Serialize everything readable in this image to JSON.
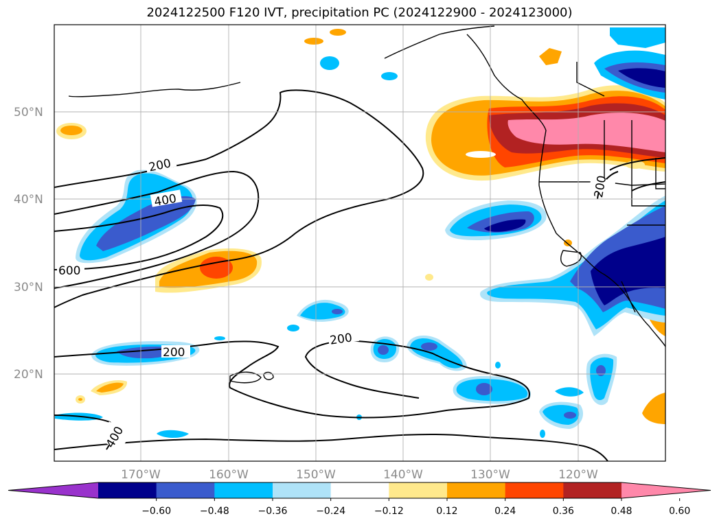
{
  "title": "2024122500 F120 IVT, precipitation PC (2024122900 - 2024123000)",
  "lon_labels": [
    "170°W",
    "160°W",
    "150°W",
    "140°W",
    "130°W",
    "120°W"
  ],
  "lat_labels": [
    "50°N",
    "40°N",
    "30°N",
    "20°N"
  ],
  "contour_labels": [
    "200",
    "400",
    "600",
    "200",
    "200",
    "400",
    "200"
  ],
  "colorbar": {
    "ticks": [
      "−0.60",
      "−0.48",
      "−0.36",
      "−0.24",
      "−0.12",
      "0.12",
      "0.24",
      "0.36",
      "0.48",
      "0.60"
    ],
    "colors": [
      "#9932cc",
      "#00008b",
      "#3a5bcd",
      "#00bfff",
      "#afe3f8",
      "#ffffff",
      "#ffe98c",
      "#ffa500",
      "#ff4500",
      "#b22222",
      "#ff88aa"
    ]
  }
}
